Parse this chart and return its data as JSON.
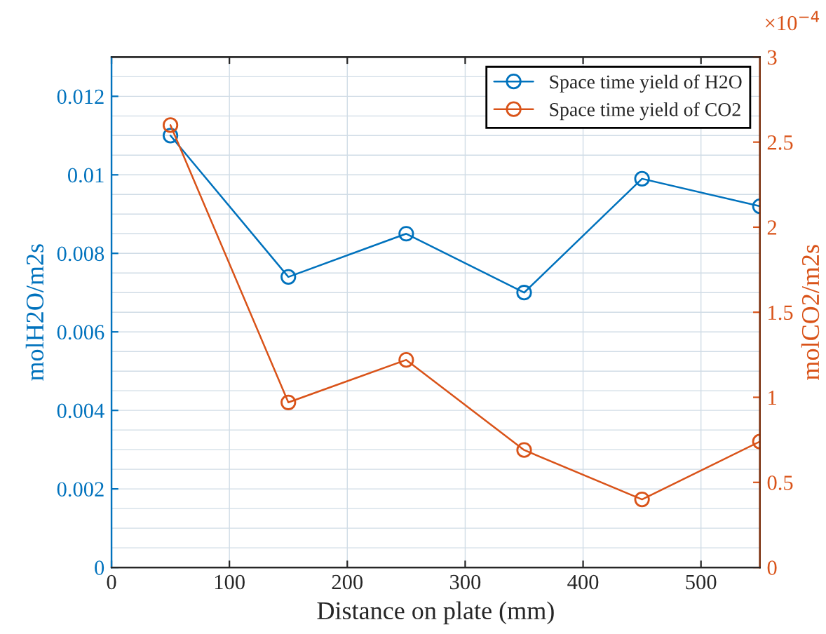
{
  "chart_data": {
    "type": "line",
    "xlabel": "Distance on plate (mm)",
    "ylabel": "molH2O/m2s",
    "y2label": "molCO2/m2s",
    "x": [
      50,
      150,
      250,
      350,
      450,
      550
    ],
    "series": [
      {
        "name": "Space time yield of H2O",
        "color": "#0072bd",
        "values": [
          0.011,
          0.0074,
          0.0085,
          0.007,
          0.0099,
          0.0092
        ]
      },
      {
        "name": "Space time yield of CO2",
        "color": "#d95319",
        "axis": "y2",
        "values": [
          2.6,
          0.97,
          1.22,
          0.69,
          0.4,
          0.74
        ]
      }
    ],
    "xlim": [
      0,
      550
    ],
    "xticks": [
      0,
      100,
      200,
      300,
      400,
      500
    ],
    "ylim": [
      0,
      0.013
    ],
    "yticks": [
      0,
      0.002,
      0.004,
      0.006,
      0.008,
      0.01,
      0.012
    ],
    "y2lim": [
      0,
      3
    ],
    "y2ticks": [
      0,
      0.5,
      1,
      1.5,
      2,
      2.5,
      3
    ],
    "annotations": [
      "×10$^{−4}$"
    ],
    "grid": true,
    "legend": "top right",
    "marker": "circle",
    "line_style": "solid"
  }
}
